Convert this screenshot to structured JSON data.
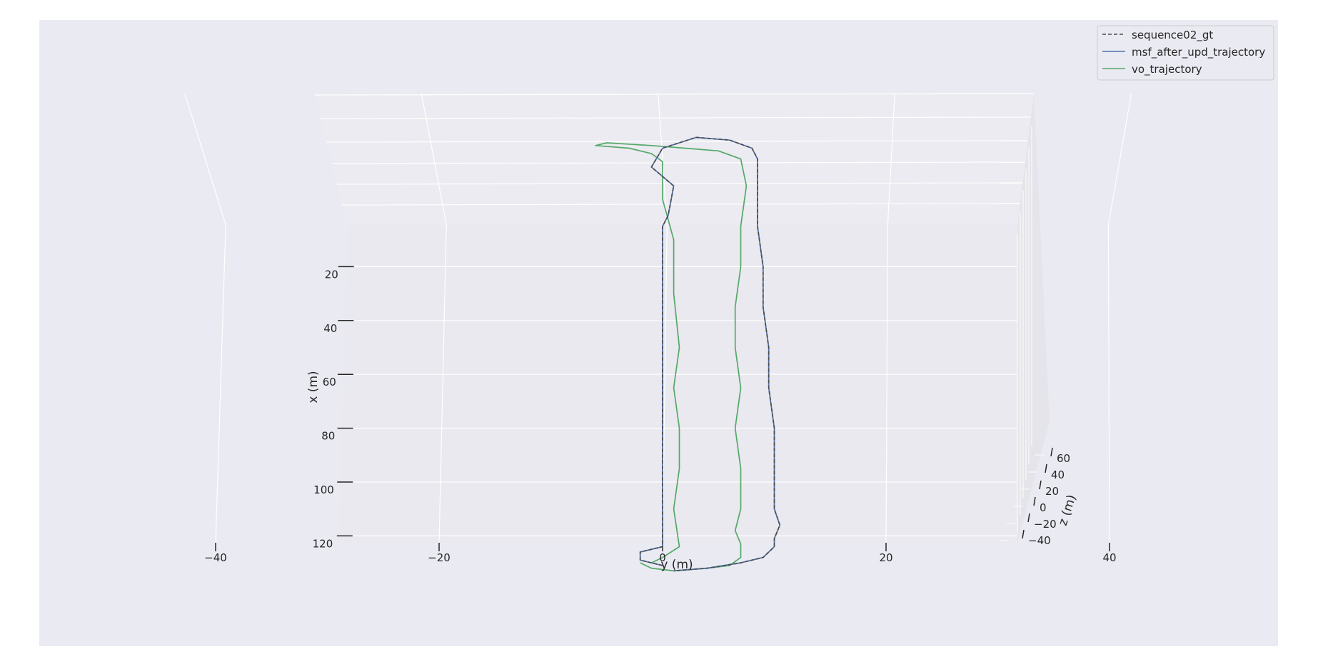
{
  "chart_data": {
    "type": "line",
    "title": "",
    "xlabel": "y (m)",
    "ylabel": "x (m)",
    "zlabel": "z (m)",
    "y_axis_ticks": [
      -40,
      -20,
      0,
      20,
      40,
      60
    ],
    "x_axis_ticks": [
      20,
      40,
      60,
      80,
      100,
      120
    ],
    "z_axis_ticks": [
      -40,
      -20,
      0,
      20,
      40,
      60
    ],
    "grid": true,
    "legend_position": "top-right",
    "background_color": "#eaeaf2",
    "series": [
      {
        "name": "sequence02_gt",
        "color": "#4c4c4c",
        "style": "dashed",
        "points": [
          [
            0,
            131
          ],
          [
            -2,
            129
          ],
          [
            -2,
            126
          ],
          [
            0,
            124
          ],
          [
            0,
            110
          ],
          [
            0,
            95
          ],
          [
            0,
            80
          ],
          [
            0,
            65
          ],
          [
            0,
            50
          ],
          [
            0,
            35
          ],
          [
            0,
            20
          ],
          [
            0,
            10
          ],
          [
            0,
            5
          ],
          [
            0.5,
            1
          ],
          [
            1,
            -10
          ],
          [
            -1,
            -17
          ],
          [
            0,
            -24
          ],
          [
            3,
            -28
          ],
          [
            6,
            -27
          ],
          [
            8,
            -24
          ],
          [
            8.5,
            -20
          ],
          [
            8.5,
            -10
          ],
          [
            8.5,
            5
          ],
          [
            9,
            20
          ],
          [
            9,
            35
          ],
          [
            9.5,
            50
          ],
          [
            9.5,
            65
          ],
          [
            10,
            80
          ],
          [
            10,
            95
          ],
          [
            10,
            110
          ],
          [
            10.5,
            116
          ],
          [
            10,
            121
          ],
          [
            10,
            124
          ],
          [
            9,
            128
          ],
          [
            7,
            130
          ],
          [
            4,
            132
          ],
          [
            1,
            133
          ]
        ]
      },
      {
        "name": "msf_after_upd_trajectory",
        "color": "#4c72b0",
        "style": "solid",
        "points": [
          [
            0,
            131
          ],
          [
            -2,
            129
          ],
          [
            -2,
            126
          ],
          [
            0,
            124
          ],
          [
            0,
            110
          ],
          [
            0,
            95
          ],
          [
            0,
            80
          ],
          [
            0,
            65
          ],
          [
            0,
            50
          ],
          [
            0,
            35
          ],
          [
            0,
            20
          ],
          [
            0,
            10
          ],
          [
            0,
            5
          ],
          [
            0.5,
            1
          ],
          [
            1,
            -10
          ],
          [
            -1,
            -17
          ],
          [
            0,
            -24
          ],
          [
            3,
            -28
          ],
          [
            6,
            -27
          ],
          [
            8,
            -24
          ],
          [
            8.5,
            -20
          ],
          [
            8.5,
            -10
          ],
          [
            8.5,
            5
          ],
          [
            9,
            20
          ],
          [
            9,
            35
          ],
          [
            9.5,
            50
          ],
          [
            9.5,
            65
          ],
          [
            10,
            80
          ],
          [
            10,
            95
          ],
          [
            10,
            110
          ],
          [
            10.5,
            116
          ],
          [
            10,
            121
          ],
          [
            10,
            124
          ],
          [
            9,
            128
          ],
          [
            7,
            130
          ],
          [
            4,
            132
          ],
          [
            1,
            133
          ]
        ]
      },
      {
        "name": "vo_trajectory",
        "color": "#55a868",
        "style": "solid",
        "points": [
          [
            -2,
            130
          ],
          [
            -1,
            132
          ],
          [
            1,
            133
          ],
          [
            4,
            132
          ],
          [
            6,
            131
          ],
          [
            7,
            128
          ],
          [
            7,
            123
          ],
          [
            6.5,
            118
          ],
          [
            7,
            110
          ],
          [
            7,
            95
          ],
          [
            6.5,
            80
          ],
          [
            7,
            65
          ],
          [
            6.5,
            50
          ],
          [
            6.5,
            35
          ],
          [
            7,
            20
          ],
          [
            7,
            5
          ],
          [
            7.5,
            -10
          ],
          [
            7,
            -20
          ],
          [
            5,
            -23
          ],
          [
            2,
            -24
          ],
          [
            -1,
            -25
          ],
          [
            -5,
            -26
          ],
          [
            -6,
            -25
          ],
          [
            -3,
            -24
          ],
          [
            -1,
            -22
          ],
          [
            0,
            -19
          ],
          [
            0,
            -5
          ],
          [
            1,
            10
          ],
          [
            1,
            30
          ],
          [
            1.5,
            50
          ],
          [
            1,
            65
          ],
          [
            1.5,
            80
          ],
          [
            1.5,
            95
          ],
          [
            1,
            110
          ],
          [
            1.5,
            124
          ],
          [
            0,
            128
          ],
          [
            -1,
            130
          ]
        ]
      }
    ]
  }
}
